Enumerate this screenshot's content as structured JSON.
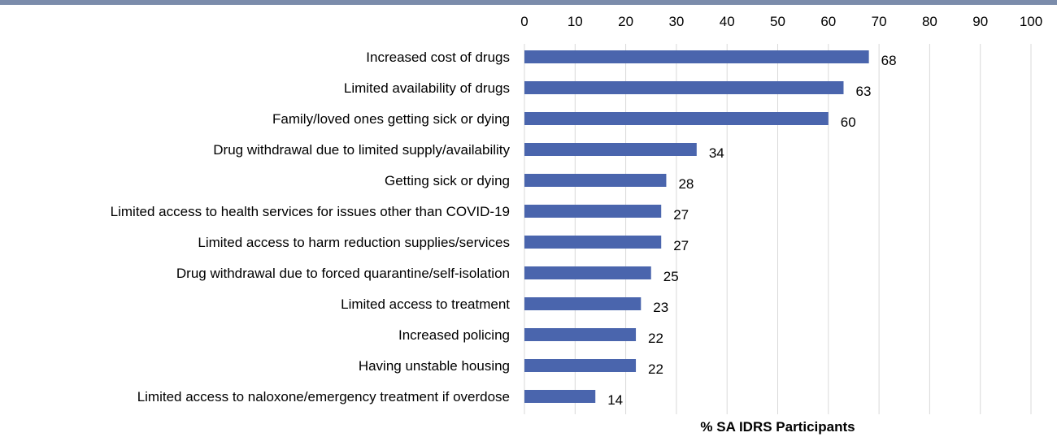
{
  "colors": {
    "top_band": "#7b8cab",
    "bar": "#4a65ad",
    "grid": "#d9d9d9"
  },
  "chart_data": {
    "type": "bar",
    "orientation": "horizontal",
    "categories": [
      "Increased cost of drugs",
      "Limited availability of drugs",
      "Family/loved ones getting sick or dying",
      "Drug withdrawal due to limited supply/availability",
      "Getting sick or dying",
      "Limited access to health services for issues other than COVID-19",
      "Limited access to harm reduction supplies/services",
      "Drug withdrawal due to forced quarantine/self-isolation",
      "Limited access to treatment",
      "Increased policing",
      "Having unstable housing",
      "Limited access to naloxone/emergency treatment if overdose"
    ],
    "values": [
      68,
      63,
      60,
      34,
      28,
      27,
      27,
      25,
      23,
      22,
      22,
      14
    ],
    "xlabel": "% SA IDRS Participants",
    "ylabel": "",
    "xlim": [
      0,
      100
    ],
    "xticks": [
      0,
      10,
      20,
      30,
      40,
      50,
      60,
      70,
      80,
      90,
      100
    ],
    "x_axis_position": "top",
    "grid": true,
    "legend": "none"
  }
}
